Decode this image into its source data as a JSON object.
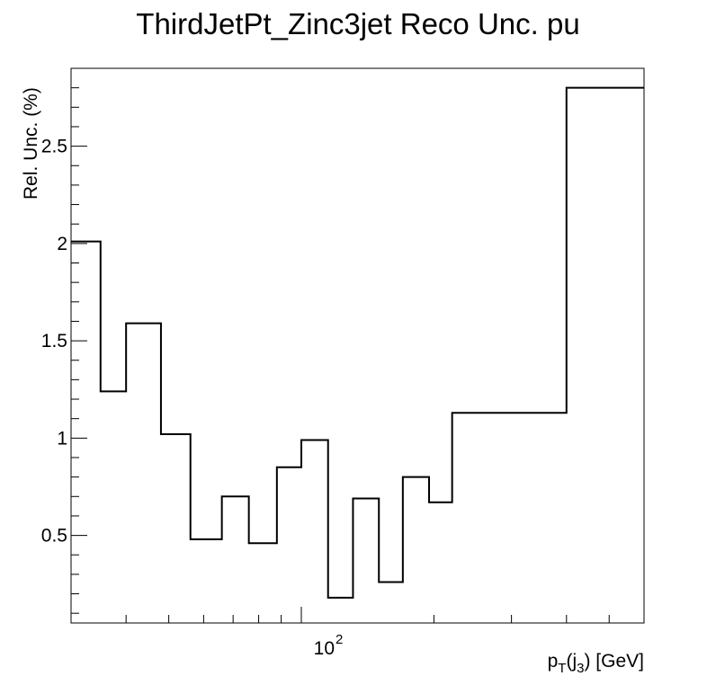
{
  "chart_data": {
    "type": "line",
    "style": "step-histogram",
    "title": "ThirdJetPt_Zinc3jet Reco Unc. pu",
    "xlabel": {
      "main": "p",
      "sub_T": "T",
      "paren_open": "(j",
      "sub_3": "3",
      "rest": ") [GeV]"
    },
    "ylabel": "Rel. Unc. (%)",
    "x_scale": "log",
    "xlim": [
      30,
      600
    ],
    "ylim": [
      0.05,
      2.9
    ],
    "x_tick_labels": [
      {
        "value": 100,
        "base": "10",
        "exp": "2"
      }
    ],
    "y_ticks": [
      0.5,
      1,
      1.5,
      2,
      2.5
    ],
    "y_tick_labels": [
      "0.5",
      "1",
      "1.5",
      "2",
      "2.5"
    ],
    "grid": false,
    "line_color": "#000000",
    "bin_edges": [
      30,
      35,
      40,
      48,
      56,
      66,
      76,
      88,
      100,
      115,
      131,
      150,
      170,
      195,
      220,
      400,
      600
    ],
    "values": [
      2.01,
      1.24,
      1.59,
      1.02,
      0.48,
      0.7,
      0.46,
      0.85,
      0.99,
      0.18,
      0.69,
      0.26,
      0.8,
      0.67,
      1.13,
      2.8
    ]
  }
}
